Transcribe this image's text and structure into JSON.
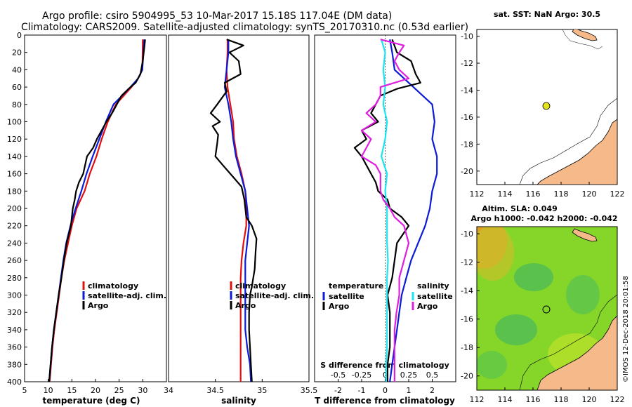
{
  "title": {
    "line1": "Argo profile: csiro 5904995_53 10-Mar-2017 15.18S 117.04E (DM data)",
    "line2": "Climatology: CARS2009. Satellite-adjusted climatology: synTS_20170310.nc (0.53d earlier)"
  },
  "colors": {
    "climatology": "#e01010",
    "satellite": "#0b1bd6",
    "argo": "#000000",
    "s_satellite": "#19e6f0",
    "s_argo": "#e01ee0",
    "map_marker": "#e3e31c",
    "land": "#f5b98a"
  },
  "depth_axis": {
    "ticks": [
      0,
      20,
      40,
      60,
      80,
      100,
      120,
      140,
      160,
      180,
      200,
      220,
      240,
      260,
      280,
      300,
      320,
      340,
      360,
      380,
      400
    ],
    "ylim": [
      0,
      400
    ]
  },
  "chart_data": [
    {
      "id": "temperature",
      "type": "line",
      "xlabel": "temperature (deg C)",
      "xlim": [
        5,
        35
      ],
      "xticks": [
        "5",
        "10",
        "15",
        "20",
        "25",
        "30"
      ],
      "legend": [
        "climatology",
        "satellite-adj. clim.",
        "Argo"
      ],
      "series": [
        {
          "name": "climatology",
          "color": "climatology",
          "depth": [
            5,
            40,
            50,
            60,
            80,
            100,
            120,
            140,
            160,
            180,
            200,
            220,
            240,
            260,
            280,
            300,
            320,
            340,
            360,
            380,
            400
          ],
          "values": [
            30.0,
            29.9,
            29.0,
            27.6,
            24.3,
            22.6,
            21.3,
            20.2,
            18.8,
            17.7,
            16.0,
            15.0,
            14.2,
            13.4,
            12.8,
            12.3,
            11.8,
            11.3,
            10.9,
            10.6,
            10.3
          ]
        },
        {
          "name": "satellite-adj. clim.",
          "color": "satellite",
          "depth": [
            5,
            40,
            50,
            60,
            80,
            100,
            120,
            140,
            160,
            180,
            200,
            220,
            240,
            260,
            280,
            300,
            320,
            340,
            360,
            380,
            400
          ],
          "values": [
            30.3,
            29.9,
            29.0,
            27.4,
            23.8,
            22.2,
            20.8,
            19.4,
            18.1,
            17.0,
            15.8,
            14.7,
            13.8,
            13.2,
            12.7,
            12.2,
            11.7,
            11.2,
            10.8,
            10.5,
            10.2
          ]
        },
        {
          "name": "Argo",
          "color": "argo",
          "depth": [
            5,
            15,
            30,
            45,
            55,
            62,
            70,
            80,
            90,
            100,
            110,
            120,
            130,
            140,
            150,
            160,
            170,
            180,
            190,
            200,
            210,
            220,
            240,
            260,
            280,
            300,
            320,
            340,
            360,
            380,
            400
          ],
          "values": [
            30.5,
            30.3,
            30.0,
            29.5,
            28.5,
            27.0,
            25.5,
            24.5,
            23.5,
            22.3,
            21.3,
            20.3,
            19.5,
            18.2,
            17.8,
            17.4,
            16.5,
            15.9,
            15.6,
            15.2,
            15.0,
            14.8,
            13.9,
            13.3,
            12.8,
            12.2,
            11.7,
            11.2,
            10.8,
            10.5,
            10.2
          ]
        }
      ]
    },
    {
      "id": "salinity",
      "type": "line",
      "xlabel": "salinity",
      "xlim": [
        34,
        35.5
      ],
      "xticks": [
        "34",
        "34.5",
        "35",
        "35.5"
      ],
      "legend": [
        "climatology",
        "satellite-adj. clim.",
        "Argo"
      ],
      "series": [
        {
          "name": "climatology",
          "color": "climatology",
          "depth": [
            5,
            20,
            40,
            60,
            80,
            100,
            120,
            140,
            160,
            180,
            200,
            220,
            240,
            260,
            280,
            300,
            320,
            340,
            360,
            380,
            400
          ],
          "values": [
            34.63,
            34.63,
            34.62,
            34.63,
            34.66,
            34.69,
            34.7,
            34.73,
            34.78,
            34.82,
            34.83,
            34.83,
            34.8,
            34.78,
            34.77,
            34.77,
            34.77,
            34.77,
            34.77,
            34.77,
            34.77
          ]
        },
        {
          "name": "satellite-adj. clim.",
          "color": "satellite",
          "depth": [
            5,
            20,
            40,
            60,
            80,
            100,
            120,
            140,
            160,
            180,
            200,
            220,
            240,
            260,
            280,
            300,
            320,
            340,
            360,
            380,
            400
          ],
          "values": [
            34.64,
            34.64,
            34.62,
            34.6,
            34.64,
            34.67,
            34.69,
            34.72,
            34.77,
            34.82,
            34.84,
            34.86,
            34.84,
            34.82,
            34.82,
            34.82,
            34.82,
            34.82,
            34.84,
            34.87,
            34.88
          ]
        },
        {
          "name": "Argo",
          "color": "argo",
          "depth": [
            5,
            12,
            20,
            30,
            45,
            55,
            65,
            80,
            90,
            100,
            105,
            115,
            125,
            140,
            150,
            160,
            175,
            190,
            210,
            220,
            235,
            250,
            270,
            290,
            300,
            320,
            340,
            360,
            380,
            400
          ],
          "values": [
            34.62,
            34.8,
            34.65,
            34.75,
            34.77,
            34.6,
            34.62,
            34.52,
            34.45,
            34.55,
            34.47,
            34.53,
            34.52,
            34.5,
            34.58,
            34.66,
            34.78,
            34.81,
            34.83,
            34.89,
            34.94,
            34.93,
            34.92,
            34.89,
            34.87,
            34.86,
            34.86,
            34.87,
            34.88,
            34.89
          ]
        }
      ]
    },
    {
      "id": "difference",
      "type": "line",
      "xlabel": "T difference from climatology",
      "xlabel_top": "S difference from climatology",
      "xlim": [
        -3,
        3
      ],
      "xticks": [
        "-2",
        "-1",
        "0",
        "1",
        "2"
      ],
      "xticks_top": [
        "-0.5",
        "-0.25",
        "0",
        "0.25",
        "0.5"
      ],
      "legend_left": {
        "title": "temperature",
        "items": [
          "satellite",
          "Argo"
        ]
      },
      "legend_right": {
        "title": "salinity",
        "items": [
          "satellite",
          "Argo"
        ]
      },
      "series": [
        {
          "name": "T satellite",
          "color": "satellite",
          "depth": [
            5,
            20,
            40,
            60,
            80,
            100,
            120,
            140,
            160,
            180,
            200,
            220,
            240,
            260,
            280,
            300,
            320,
            340,
            360,
            380,
            400
          ],
          "values": [
            0.2,
            0.3,
            0.4,
            1.2,
            2.0,
            2.1,
            2.0,
            2.2,
            2.2,
            2.0,
            1.9,
            1.7,
            1.4,
            1.1,
            0.9,
            0.7,
            0.6,
            0.5,
            0.4,
            0.3,
            0.2
          ]
        },
        {
          "name": "T Argo",
          "color": "argo",
          "depth": [
            5,
            20,
            30,
            45,
            55,
            62,
            70,
            80,
            90,
            100,
            110,
            120,
            130,
            140,
            150,
            160,
            170,
            180,
            190,
            200,
            210,
            220,
            240,
            260,
            280,
            300,
            320,
            340,
            360,
            380,
            400
          ],
          "values": [
            0.3,
            0.5,
            1.1,
            1.3,
            1.5,
            0.5,
            -0.2,
            -0.4,
            -0.6,
            -0.3,
            -1.0,
            -0.8,
            -1.3,
            -1.0,
            -0.8,
            -0.6,
            -0.4,
            -0.3,
            0.1,
            0.2,
            0.7,
            1.0,
            0.5,
            0.4,
            0.3,
            0.1,
            0.2,
            0.2,
            0.2,
            0.1,
            0.1
          ]
        },
        {
          "name": "S satellite",
          "color": "s_satellite",
          "depth": [
            5,
            20,
            40,
            60,
            80,
            100,
            120,
            140,
            160,
            180,
            200,
            220,
            240,
            260,
            280,
            300,
            320,
            340,
            360,
            380,
            400
          ],
          "values": [
            -0.04,
            0.0,
            -0.02,
            0.0,
            -0.02,
            0.02,
            0.0,
            -0.04,
            0.02,
            0.0,
            0.02,
            0.02,
            0.02,
            0.03,
            0.02,
            0.02,
            0.02,
            0.02,
            0.02,
            0.01,
            0.01
          ]
        },
        {
          "name": "S Argo",
          "color": "s_argo",
          "depth": [
            5,
            12,
            20,
            30,
            40,
            50,
            60,
            70,
            80,
            90,
            100,
            110,
            120,
            130,
            140,
            150,
            160,
            170,
            180,
            190,
            200,
            210,
            220,
            240,
            260,
            280,
            300,
            320,
            340,
            360,
            380,
            400
          ],
          "values": [
            -0.05,
            0.2,
            0.15,
            0.1,
            0.15,
            0.25,
            -0.05,
            -0.05,
            -0.1,
            -0.2,
            -0.1,
            -0.25,
            -0.15,
            -0.2,
            -0.25,
            -0.1,
            -0.05,
            -0.05,
            -0.05,
            -0.02,
            0.05,
            0.1,
            0.2,
            0.25,
            0.2,
            0.15,
            0.15,
            0.12,
            0.1,
            0.1,
            0.1,
            0.1
          ]
        }
      ]
    },
    {
      "id": "sst_map",
      "type": "scatter",
      "title": "sat. SST: NaN Argo: 30.5",
      "xlim": [
        112,
        122
      ],
      "ylim": [
        -21,
        -9.5
      ],
      "xticks": [
        "112",
        "114",
        "116",
        "118",
        "120",
        "122"
      ],
      "yticks": [
        "-10",
        "-12",
        "-14",
        "-16",
        "-18",
        "-20"
      ],
      "points": [
        {
          "lon": 117.04,
          "lat": -15.18
        }
      ]
    },
    {
      "id": "sla_map",
      "type": "heatmap",
      "title": "Altim. SLA: 0.049",
      "subtitle": "Argo h1000: -0.042 h2000: -0.042",
      "xlim": [
        112,
        122
      ],
      "ylim": [
        -21,
        -9.5
      ],
      "xticks": [
        "112",
        "114",
        "116",
        "118",
        "120",
        "122"
      ],
      "yticks": [
        "-10",
        "-12",
        "-14",
        "-16",
        "-18",
        "-20"
      ],
      "points": [
        {
          "lon": 117.04,
          "lat": -15.18
        }
      ]
    }
  ],
  "credit": "©IMOS 12-Dec-2018 20:01:58"
}
